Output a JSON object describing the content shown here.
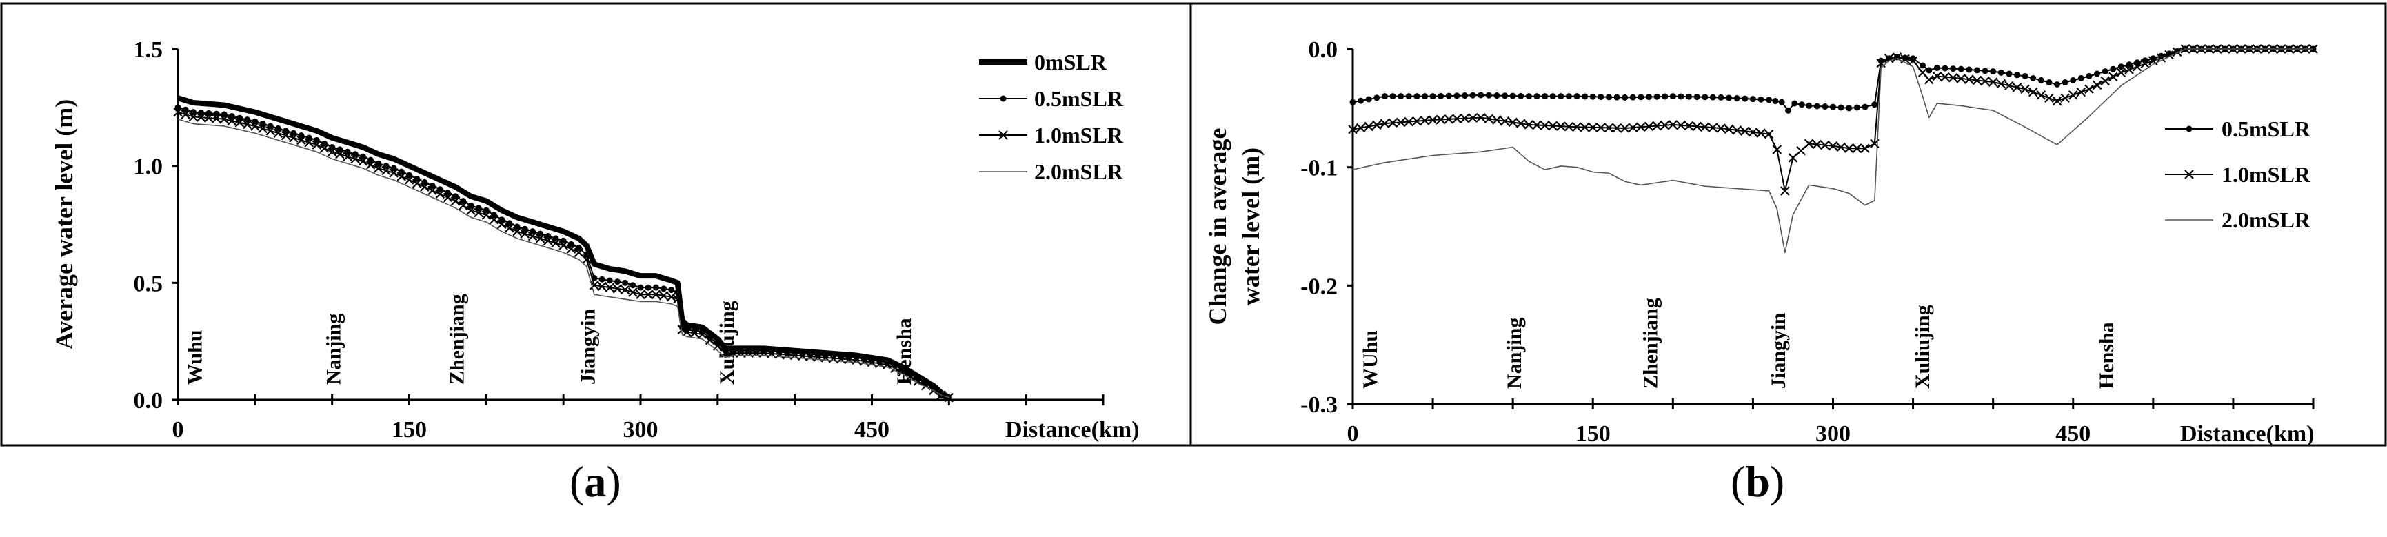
{
  "chart_data": [
    {
      "type": "line",
      "panel_label": "a",
      "xlabel": "Distance(km)",
      "ylabel": "Average water level (m)",
      "xlim": [
        0,
        600
      ],
      "ylim": [
        0,
        1.5
      ],
      "xticks": [
        "0",
        "150",
        "300",
        "450"
      ],
      "yticks": [
        "0.0",
        "0.5",
        "1.0",
        "1.5"
      ],
      "legend_position": "top-right",
      "stations": [
        {
          "name": "Wuhu",
          "x": 10
        },
        {
          "name": "Nanjing",
          "x": 100
        },
        {
          "name": "Zhenjiang",
          "x": 180
        },
        {
          "name": "Jiangyin",
          "x": 265
        },
        {
          "name": "Xuliujing",
          "x": 355
        },
        {
          "name": "Hensha",
          "x": 470
        }
      ],
      "series": [
        {
          "name": "0mSLR",
          "style": "thick",
          "x": [
            0,
            10,
            30,
            50,
            70,
            90,
            100,
            110,
            120,
            130,
            140,
            150,
            160,
            170,
            180,
            190,
            200,
            210,
            220,
            230,
            240,
            250,
            260,
            265,
            270,
            280,
            290,
            300,
            310,
            320,
            324,
            327,
            330,
            340,
            350,
            355,
            360,
            380,
            400,
            420,
            440,
            460,
            470,
            480,
            490,
            495,
            500
          ],
          "y": [
            1.29,
            1.27,
            1.26,
            1.23,
            1.19,
            1.15,
            1.12,
            1.1,
            1.08,
            1.05,
            1.03,
            1.0,
            0.97,
            0.94,
            0.91,
            0.87,
            0.85,
            0.81,
            0.78,
            0.76,
            0.74,
            0.72,
            0.69,
            0.66,
            0.58,
            0.56,
            0.55,
            0.53,
            0.53,
            0.51,
            0.5,
            0.34,
            0.32,
            0.31,
            0.26,
            0.22,
            0.22,
            0.22,
            0.21,
            0.2,
            0.19,
            0.17,
            0.14,
            0.1,
            0.06,
            0.03,
            0.01
          ]
        },
        {
          "name": "0.5mSLR",
          "style": "dot",
          "x": [
            0,
            10,
            30,
            50,
            70,
            90,
            100,
            110,
            120,
            130,
            140,
            150,
            160,
            170,
            180,
            190,
            200,
            210,
            220,
            230,
            240,
            250,
            260,
            265,
            270,
            280,
            290,
            300,
            310,
            320,
            324,
            327,
            330,
            340,
            350,
            355,
            360,
            380,
            400,
            420,
            440,
            460,
            470,
            480,
            490,
            495,
            500
          ],
          "y": [
            1.25,
            1.23,
            1.22,
            1.19,
            1.15,
            1.11,
            1.08,
            1.06,
            1.04,
            1.01,
            0.99,
            0.96,
            0.93,
            0.9,
            0.87,
            0.83,
            0.81,
            0.77,
            0.74,
            0.72,
            0.7,
            0.68,
            0.65,
            0.62,
            0.52,
            0.51,
            0.5,
            0.48,
            0.48,
            0.47,
            0.46,
            0.31,
            0.3,
            0.29,
            0.24,
            0.21,
            0.21,
            0.21,
            0.2,
            0.19,
            0.18,
            0.16,
            0.13,
            0.09,
            0.05,
            0.02,
            0.01
          ]
        },
        {
          "name": "1.0mSLR",
          "style": "cross",
          "x": [
            0,
            10,
            30,
            50,
            70,
            90,
            100,
            110,
            120,
            130,
            140,
            150,
            160,
            170,
            180,
            190,
            200,
            210,
            220,
            230,
            240,
            250,
            260,
            265,
            270,
            280,
            290,
            300,
            310,
            320,
            324,
            327,
            330,
            340,
            350,
            355,
            360,
            380,
            400,
            420,
            440,
            460,
            470,
            480,
            490,
            495,
            500
          ],
          "y": [
            1.23,
            1.21,
            1.2,
            1.17,
            1.13,
            1.09,
            1.06,
            1.04,
            1.02,
            0.99,
            0.97,
            0.94,
            0.91,
            0.88,
            0.85,
            0.81,
            0.79,
            0.75,
            0.72,
            0.7,
            0.68,
            0.66,
            0.63,
            0.6,
            0.49,
            0.48,
            0.47,
            0.45,
            0.45,
            0.44,
            0.43,
            0.3,
            0.29,
            0.28,
            0.23,
            0.2,
            0.2,
            0.2,
            0.19,
            0.18,
            0.17,
            0.15,
            0.12,
            0.08,
            0.04,
            0.02,
            0.01
          ]
        },
        {
          "name": "2.0mSLR",
          "style": "thin",
          "x": [
            0,
            10,
            30,
            50,
            70,
            90,
            100,
            110,
            120,
            130,
            140,
            150,
            160,
            170,
            180,
            190,
            200,
            210,
            220,
            230,
            240,
            250,
            260,
            265,
            270,
            280,
            290,
            300,
            310,
            320,
            324,
            327,
            330,
            340,
            350,
            355,
            360,
            380,
            400,
            420,
            440,
            460,
            470,
            480,
            490,
            495,
            500
          ],
          "y": [
            1.2,
            1.18,
            1.17,
            1.14,
            1.1,
            1.06,
            1.03,
            1.01,
            0.99,
            0.96,
            0.94,
            0.91,
            0.88,
            0.85,
            0.82,
            0.78,
            0.76,
            0.72,
            0.69,
            0.67,
            0.65,
            0.63,
            0.6,
            0.57,
            0.45,
            0.44,
            0.43,
            0.42,
            0.42,
            0.41,
            0.4,
            0.28,
            0.27,
            0.26,
            0.21,
            0.18,
            0.19,
            0.19,
            0.18,
            0.17,
            0.16,
            0.14,
            0.11,
            0.07,
            0.04,
            0.02,
            0.01
          ]
        }
      ]
    },
    {
      "type": "line",
      "panel_label": "b",
      "xlabel": "Distance(km)",
      "ylabel": [
        "Change in average",
        "water level (m)"
      ],
      "xlim": [
        0,
        600
      ],
      "ylim": [
        -0.3,
        0.0
      ],
      "xticks": [
        "0",
        "150",
        "300",
        "450"
      ],
      "yticks": [
        "0.0",
        "-0.1",
        "-0.2",
        "-0.3"
      ],
      "legend_position": "right",
      "stations": [
        {
          "name": "WUhu",
          "x": 10
        },
        {
          "name": "Nanjing",
          "x": 100
        },
        {
          "name": "Zhenjiang",
          "x": 185
        },
        {
          "name": "Jiangyin",
          "x": 265
        },
        {
          "name": "Xuliujing",
          "x": 355
        },
        {
          "name": "Hensha",
          "x": 470
        }
      ],
      "series": [
        {
          "name": "0.5mSLR",
          "style": "dot",
          "x": [
            0,
            20,
            50,
            80,
            110,
            140,
            170,
            200,
            230,
            260,
            268,
            272,
            276,
            285,
            300,
            310,
            320,
            326,
            330,
            335,
            340,
            350,
            356,
            360,
            365,
            380,
            400,
            420,
            440,
            460,
            480,
            500,
            520,
            540,
            560,
            580,
            600
          ],
          "y": [
            -0.045,
            -0.04,
            -0.04,
            -0.039,
            -0.04,
            -0.04,
            -0.041,
            -0.04,
            -0.041,
            -0.043,
            -0.045,
            -0.052,
            -0.046,
            -0.048,
            -0.049,
            -0.05,
            -0.049,
            -0.047,
            -0.01,
            -0.008,
            -0.007,
            -0.008,
            -0.014,
            -0.018,
            -0.016,
            -0.017,
            -0.019,
            -0.023,
            -0.03,
            -0.023,
            -0.015,
            -0.008,
            0.0,
            0.0,
            0.0,
            0.0,
            0.0
          ]
        },
        {
          "name": "1.0mSLR",
          "style": "cross",
          "x": [
            0,
            20,
            50,
            80,
            110,
            140,
            170,
            200,
            230,
            260,
            265,
            270,
            275,
            285,
            300,
            310,
            320,
            326,
            330,
            335,
            340,
            350,
            356,
            360,
            365,
            380,
            400,
            420,
            440,
            460,
            480,
            500,
            520,
            540,
            560,
            580,
            600
          ],
          "y": [
            -0.068,
            -0.063,
            -0.06,
            -0.058,
            -0.064,
            -0.066,
            -0.067,
            -0.064,
            -0.067,
            -0.072,
            -0.085,
            -0.12,
            -0.092,
            -0.08,
            -0.082,
            -0.084,
            -0.084,
            -0.08,
            -0.012,
            -0.008,
            -0.007,
            -0.01,
            -0.02,
            -0.026,
            -0.023,
            -0.025,
            -0.028,
            -0.034,
            -0.044,
            -0.034,
            -0.02,
            -0.01,
            0.0,
            0.0,
            0.0,
            0.0,
            0.0
          ]
        },
        {
          "name": "2.0mSLR",
          "style": "thin",
          "x": [
            0,
            20,
            50,
            80,
            100,
            110,
            120,
            130,
            140,
            150,
            160,
            170,
            180,
            200,
            220,
            240,
            260,
            265,
            270,
            275,
            285,
            300,
            310,
            320,
            326,
            330,
            335,
            340,
            350,
            356,
            360,
            365,
            380,
            400,
            420,
            440,
            460,
            480,
            500,
            520,
            540,
            560,
            580,
            600
          ],
          "y": [
            -0.102,
            -0.096,
            -0.09,
            -0.087,
            -0.083,
            -0.095,
            -0.102,
            -0.099,
            -0.1,
            -0.104,
            -0.105,
            -0.112,
            -0.115,
            -0.111,
            -0.116,
            -0.118,
            -0.12,
            -0.135,
            -0.172,
            -0.14,
            -0.115,
            -0.118,
            -0.122,
            -0.132,
            -0.128,
            -0.016,
            -0.01,
            -0.008,
            -0.015,
            -0.04,
            -0.058,
            -0.046,
            -0.048,
            -0.052,
            -0.066,
            -0.081,
            -0.057,
            -0.031,
            -0.013,
            0.0,
            0.0,
            0.0,
            0.0,
            0.0
          ]
        }
      ]
    }
  ],
  "captions": {
    "a": "a",
    "b": "b"
  }
}
